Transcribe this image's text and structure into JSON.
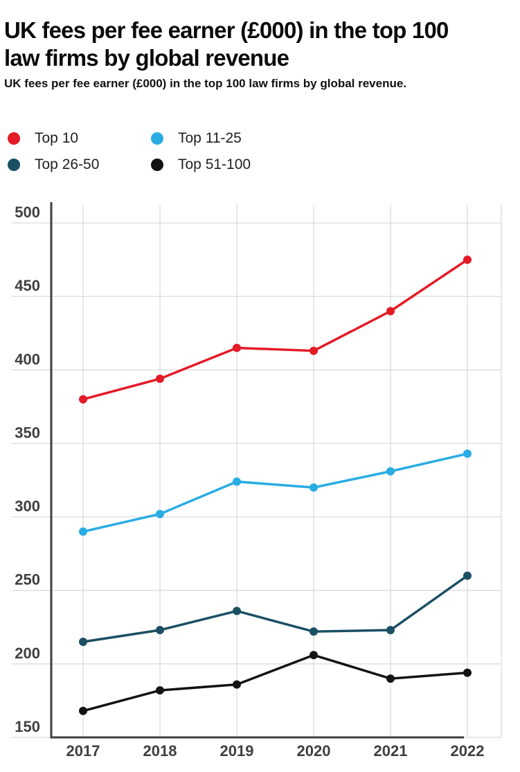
{
  "header": {
    "title": "UK fees per fee earner (£000) in the top 100 law firms by global revenue",
    "subtitle": "UK fees per fee earner (£000) in the top 100 law firms by global revenue."
  },
  "chart_data": {
    "type": "line",
    "x": [
      "2017",
      "2018",
      "2019",
      "2020",
      "2021",
      "2022"
    ],
    "series": [
      {
        "name": "Top 10",
        "color": "#e41a27",
        "values": [
          380,
          394,
          415,
          413,
          440,
          475
        ]
      },
      {
        "name": "Top 11-25",
        "color": "#29ace4",
        "values": [
          290,
          302,
          324,
          320,
          331,
          343
        ]
      },
      {
        "name": "Top 26-50",
        "color": "#1b4f63",
        "values": [
          215,
          223,
          236,
          222,
          223,
          260
        ]
      },
      {
        "name": "Top 51-100",
        "color": "#131313",
        "values": [
          168,
          182,
          186,
          206,
          190,
          194
        ]
      }
    ],
    "ylim": [
      150,
      500
    ],
    "yticks": [
      500,
      450,
      400,
      350,
      300,
      250,
      200,
      150
    ],
    "grid": true,
    "legend_position": "top-left",
    "grid_color": "#d9d9d9",
    "axis_color": "#3f3f3f",
    "tick_label_color": "#3f3f3f"
  }
}
